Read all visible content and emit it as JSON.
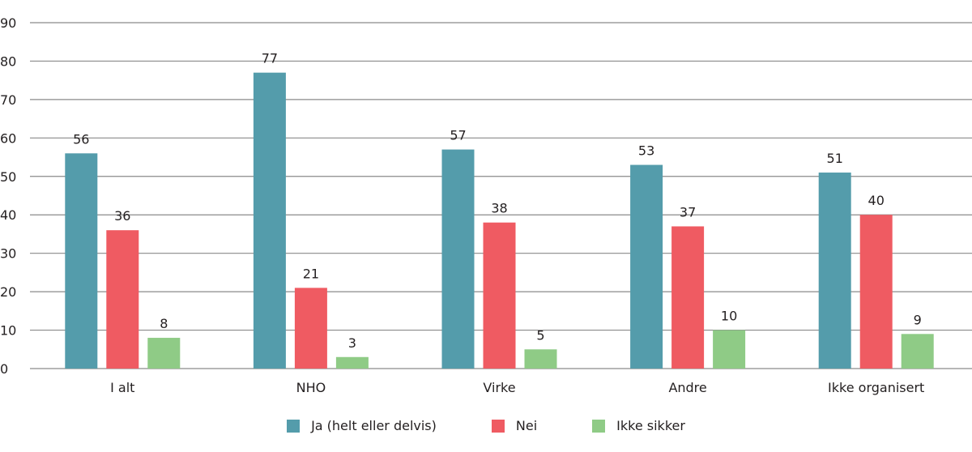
{
  "chart_data": {
    "type": "bar",
    "title": "",
    "xlabel": "",
    "ylabel": "",
    "ylim": [
      0,
      90
    ],
    "yticks": [
      0,
      10,
      20,
      30,
      40,
      50,
      60,
      70,
      80,
      90
    ],
    "grid": true,
    "legend_position": "bottom",
    "categories": [
      "I alt",
      "NHO",
      "Virke",
      "Andre",
      "Ikke organisert"
    ],
    "series": [
      {
        "name": "Ja (helt eller delvis)",
        "color": "#549cab",
        "values": [
          56,
          77,
          57,
          53,
          51
        ]
      },
      {
        "name": "Nei",
        "color": "#ef5b62",
        "values": [
          36,
          21,
          38,
          37,
          40
        ]
      },
      {
        "name": "Ikke sikker",
        "color": "#8fcb86",
        "values": [
          8,
          3,
          5,
          10,
          9
        ]
      }
    ]
  },
  "legend": {
    "items": [
      {
        "label": "Ja (helt eller delvis)",
        "color": "#549cab"
      },
      {
        "label": "Nei",
        "color": "#ef5b62"
      },
      {
        "label": "Ikke sikker",
        "color": "#8fcb86"
      }
    ]
  }
}
